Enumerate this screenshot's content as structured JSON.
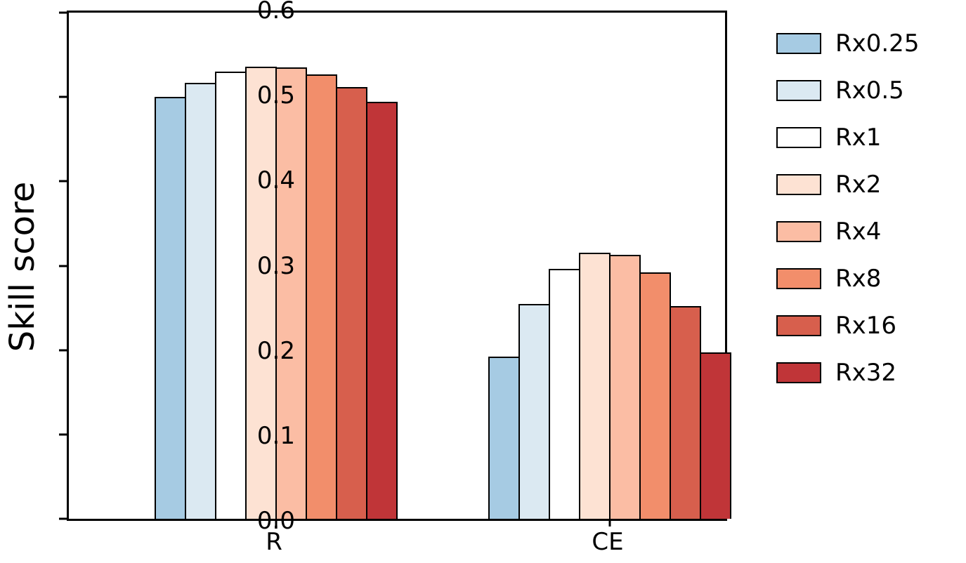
{
  "chart_data": {
    "type": "bar",
    "title": "",
    "xlabel": "",
    "ylabel": "Skill score",
    "ylim": [
      0,
      0.6
    ],
    "grid": false,
    "legend_position": "outside upper right",
    "ytick_labels": [
      "0.0",
      "0.1",
      "0.2",
      "0.3",
      "0.4",
      "0.5",
      "0.6"
    ],
    "ytick_values": [
      0.0,
      0.1,
      0.2,
      0.3,
      0.4,
      0.5,
      0.6
    ],
    "categories": [
      "R",
      "CE"
    ],
    "series": [
      {
        "name": "Rx0.25",
        "color": "#a6cbe3",
        "values": [
          0.5,
          0.192
        ]
      },
      {
        "name": "Rx0.5",
        "color": "#dbe9f2",
        "values": [
          0.517,
          0.255
        ]
      },
      {
        "name": "Rx1",
        "color": "#ffffff",
        "values": [
          0.53,
          0.296
        ]
      },
      {
        "name": "Rx2",
        "color": "#fde2d3",
        "values": [
          0.536,
          0.315
        ]
      },
      {
        "name": "Rx4",
        "color": "#fbbda4",
        "values": [
          0.535,
          0.313
        ]
      },
      {
        "name": "Rx8",
        "color": "#f28e6b",
        "values": [
          0.527,
          0.292
        ]
      },
      {
        "name": "Rx16",
        "color": "#d75f4d",
        "values": [
          0.512,
          0.252
        ]
      },
      {
        "name": "Rx32",
        "color": "#c03538",
        "values": [
          0.494,
          0.197
        ]
      }
    ]
  }
}
